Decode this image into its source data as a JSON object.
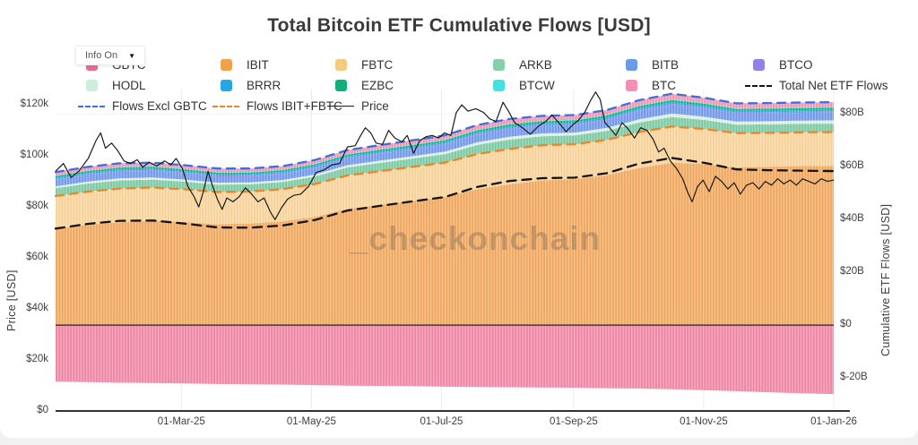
{
  "title": "Total Bitcoin ETF Cumulative Flows [USD]",
  "info_button": {
    "label": "Info On",
    "caret": "▼"
  },
  "watermark": "_checkonchain",
  "legend": {
    "rows": [
      [
        {
          "label": "GBTC",
          "marker": "swatch",
          "color": "#ec6d8f"
        },
        {
          "label": "IBIT",
          "marker": "swatch",
          "color": "#f0a149"
        },
        {
          "label": "FBTC",
          "marker": "swatch",
          "color": "#f6c981"
        },
        {
          "label": "ARKB",
          "marker": "swatch",
          "color": "#85d0ab"
        },
        {
          "label": "BITB",
          "marker": "swatch",
          "color": "#6d9ae8"
        },
        {
          "label": "BTCO",
          "marker": "swatch",
          "color": "#8f82e6"
        }
      ],
      [
        {
          "label": "HODL",
          "marker": "swatch",
          "color": "#cdeeda"
        },
        {
          "label": "BRRR",
          "marker": "swatch",
          "color": "#25a7e3"
        },
        {
          "label": "EZBC",
          "marker": "swatch",
          "color": "#12ad7d"
        },
        {
          "label": "BTCW",
          "marker": "swatch",
          "color": "#42e2e2"
        },
        {
          "label": "BTC",
          "marker": "swatch",
          "color": "#f48fb1"
        },
        {
          "label": "Total Net ETF Flows",
          "marker": "dash",
          "color": "#141414"
        }
      ],
      [
        {
          "label": "Flows Excl GBTC",
          "marker": "dash",
          "color": "#3e6fe0"
        },
        {
          "label": "Flows IBIT+FBTC",
          "marker": "dash",
          "color": "#f08428"
        },
        {
          "label": "Price",
          "marker": "line",
          "color": "#1c1c1c"
        }
      ]
    ]
  },
  "axes": {
    "left": {
      "label": "Price [USD]",
      "range": [
        0,
        126000
      ],
      "ticks": [
        {
          "v": 0,
          "label": "$0"
        },
        {
          "v": 20000,
          "label": "$20k"
        },
        {
          "v": 40000,
          "label": "$40k"
        },
        {
          "v": 60000,
          "label": "$60k"
        },
        {
          "v": 80000,
          "label": "$80k"
        },
        {
          "v": 100000,
          "label": "$100k"
        },
        {
          "v": 120000,
          "label": "$120k"
        }
      ]
    },
    "right": {
      "label": "Cumulative ETF Flows [USD]",
      "range": [
        -32.5,
        89.2
      ],
      "ticks": [
        {
          "v": -20,
          "label": "$-20B"
        },
        {
          "v": 0,
          "label": "$0"
        },
        {
          "v": 20,
          "label": "$20B"
        },
        {
          "v": 40,
          "label": "$40B"
        },
        {
          "v": 60,
          "label": "$60B"
        },
        {
          "v": 80,
          "label": "$80B"
        }
      ]
    },
    "x": {
      "ticks": [
        {
          "t": 0.1616,
          "label": "01-Mar-25"
        },
        {
          "t": 0.3288,
          "label": "01-May-25"
        },
        {
          "t": 0.4959,
          "label": "01-Jul-25"
        },
        {
          "t": 0.6658,
          "label": "01-Sep-25"
        },
        {
          "t": 0.8329,
          "label": "01-Nov-25"
        },
        {
          "t": 1.0,
          "label": "01-Jan-26"
        }
      ]
    }
  },
  "chart_data": {
    "type": "area",
    "stacked": true,
    "legend_position": "top",
    "x_domain": [
      "01-Jan-25",
      "01-Jan-26"
    ],
    "flows_unit": "USD billions",
    "price_unit": "USD thousands",
    "sample_t": [
      0,
      0.042,
      0.083,
      0.125,
      0.167,
      0.208,
      0.25,
      0.292,
      0.333,
      0.375,
      0.417,
      0.458,
      0.5,
      0.542,
      0.583,
      0.625,
      0.667,
      0.708,
      0.75,
      0.792,
      0.833,
      0.875,
      0.917,
      0.958,
      1
    ],
    "series": [
      {
        "id": "GBTC",
        "name": "GBTC",
        "color": "#ee85a3",
        "values": [
          -21.4,
          -21.6,
          -21.8,
          -21.9,
          -22.1,
          -22.3,
          -22.4,
          -22.5,
          -22.7,
          -22.9,
          -23.0,
          -23.1,
          -23.3,
          -23.4,
          -23.5,
          -23.6,
          -23.7,
          -23.9,
          -24.0,
          -24.3,
          -24.6,
          -25.0,
          -25.4,
          -25.8,
          -26.1
        ]
      },
      {
        "id": "IBIT",
        "name": "IBIT",
        "color": "#f0a65c",
        "values": [
          36.5,
          38.0,
          39.0,
          39.5,
          39.0,
          38.2,
          38.5,
          39.3,
          41.0,
          44.0,
          45.5,
          47.0,
          48.5,
          51.5,
          53.3,
          54.8,
          55.3,
          56.8,
          59.5,
          61.5,
          61.0,
          59.8,
          60.0,
          60.2,
          60.2
        ]
      },
      {
        "id": "FBTC",
        "name": "FBTC",
        "color": "#f7d197",
        "values": [
          12.4,
          12.6,
          12.7,
          12.6,
          12.4,
          12.2,
          12.1,
          12.2,
          12.4,
          12.7,
          12.8,
          12.9,
          13.0,
          13.3,
          13.4,
          13.3,
          13.2,
          13.3,
          13.6,
          13.7,
          13.3,
          12.9,
          12.8,
          12.8,
          12.9
        ]
      },
      {
        "id": "ARKB",
        "name": "ARKB",
        "color": "#7bc9a2",
        "values": [
          2.9,
          3.0,
          3.1,
          3.0,
          2.9,
          2.8,
          2.7,
          2.7,
          2.8,
          3.0,
          3.1,
          3.1,
          3.2,
          3.4,
          3.5,
          3.4,
          3.3,
          3.4,
          3.6,
          3.6,
          3.4,
          3.2,
          3.2,
          3.2,
          3.2
        ]
      },
      {
        "id": "HODL",
        "name": "HODL",
        "color": "#d6efdf",
        "values": [
          0.75,
          0.78,
          0.8,
          0.8,
          0.78,
          0.76,
          0.75,
          0.76,
          0.8,
          0.86,
          0.9,
          0.93,
          0.97,
          1.05,
          1.1,
          1.1,
          1.1,
          1.15,
          1.25,
          1.3,
          1.25,
          1.2,
          1.2,
          1.22,
          1.25
        ]
      },
      {
        "id": "BITB",
        "name": "BITB",
        "color": "#7097e8",
        "values": [
          2.4,
          2.5,
          2.55,
          2.5,
          2.4,
          2.35,
          2.3,
          2.3,
          2.4,
          2.5,
          2.55,
          2.6,
          2.65,
          2.8,
          2.9,
          2.85,
          2.85,
          2.9,
          3.1,
          3.2,
          3.05,
          2.95,
          2.95,
          2.95,
          2.95
        ]
      },
      {
        "id": "BTCO",
        "name": "BTCO",
        "color": "#8f82e6",
        "values": [
          0.35,
          0.36,
          0.37,
          0.36,
          0.35,
          0.34,
          0.34,
          0.34,
          0.35,
          0.37,
          0.38,
          0.39,
          0.4,
          0.43,
          0.45,
          0.44,
          0.44,
          0.45,
          0.48,
          0.5,
          0.47,
          0.45,
          0.45,
          0.45,
          0.45
        ]
      },
      {
        "id": "BRRR",
        "name": "BRRR",
        "color": "#25a7e3",
        "values": [
          0.5,
          0.51,
          0.52,
          0.51,
          0.5,
          0.49,
          0.49,
          0.49,
          0.5,
          0.52,
          0.53,
          0.54,
          0.55,
          0.58,
          0.6,
          0.59,
          0.59,
          0.6,
          0.63,
          0.65,
          0.62,
          0.6,
          0.6,
          0.6,
          0.6
        ]
      },
      {
        "id": "EZBC",
        "name": "EZBC",
        "color": "#12ad7d",
        "values": [
          0.62,
          0.63,
          0.64,
          0.63,
          0.62,
          0.61,
          0.6,
          0.6,
          0.62,
          0.65,
          0.66,
          0.67,
          0.68,
          0.72,
          0.74,
          0.73,
          0.73,
          0.74,
          0.78,
          0.8,
          0.77,
          0.74,
          0.74,
          0.74,
          0.74
        ]
      },
      {
        "id": "BTCW",
        "name": "BTCW",
        "color": "#42e2e2",
        "values": [
          0.22,
          0.23,
          0.23,
          0.23,
          0.22,
          0.22,
          0.22,
          0.22,
          0.23,
          0.24,
          0.24,
          0.25,
          0.25,
          0.27,
          0.28,
          0.27,
          0.27,
          0.28,
          0.29,
          0.3,
          0.29,
          0.28,
          0.28,
          0.28,
          0.28
        ]
      },
      {
        "id": "BTC",
        "name": "BTC",
        "color": "#f493b0",
        "values": [
          1.3,
          1.35,
          1.4,
          1.38,
          1.35,
          1.32,
          1.3,
          1.32,
          1.38,
          1.45,
          1.5,
          1.55,
          1.6,
          1.7,
          1.78,
          1.75,
          1.75,
          1.8,
          1.95,
          2.05,
          1.95,
          1.85,
          1.85,
          1.85,
          1.85
        ]
      }
    ],
    "lines": [
      {
        "id": "total_net",
        "name": "Total Net ETF Flows",
        "color": "#141414",
        "style": "dashed",
        "derive": "sum_all"
      },
      {
        "id": "excl_gbtc",
        "name": "Flows Excl GBTC",
        "color": "#3e6fe0",
        "style": "dashed",
        "derive": "sum_positive"
      },
      {
        "id": "ibit_fbtc",
        "name": "Flows IBIT+FBTC",
        "color": "#f08428",
        "style": "dashed",
        "derive": "sum_ids:IBIT,FBTC"
      }
    ],
    "price_line": {
      "name": "Price",
      "color": "#1c1c1c",
      "points": [
        [
          0,
          94
        ],
        [
          0.01,
          97
        ],
        [
          0.02,
          91.5
        ],
        [
          0.03,
          94
        ],
        [
          0.042,
          99
        ],
        [
          0.052,
          106
        ],
        [
          0.058,
          109
        ],
        [
          0.064,
          103
        ],
        [
          0.072,
          105
        ],
        [
          0.08,
          102
        ],
        [
          0.088,
          98
        ],
        [
          0.096,
          97
        ],
        [
          0.105,
          98.5
        ],
        [
          0.112,
          95.5
        ],
        [
          0.12,
          97.5
        ],
        [
          0.13,
          96
        ],
        [
          0.14,
          98
        ],
        [
          0.148,
          96.5
        ],
        [
          0.155,
          99
        ],
        [
          0.163,
          95
        ],
        [
          0.17,
          88
        ],
        [
          0.178,
          84
        ],
        [
          0.184,
          80
        ],
        [
          0.19,
          86
        ],
        [
          0.196,
          94
        ],
        [
          0.202,
          88
        ],
        [
          0.208,
          83
        ],
        [
          0.214,
          79
        ],
        [
          0.22,
          83.5
        ],
        [
          0.228,
          82
        ],
        [
          0.236,
          84
        ],
        [
          0.244,
          87.5
        ],
        [
          0.252,
          85
        ],
        [
          0.26,
          82
        ],
        [
          0.268,
          83.5
        ],
        [
          0.276,
          78
        ],
        [
          0.282,
          75
        ],
        [
          0.29,
          79.5
        ],
        [
          0.298,
          83
        ],
        [
          0.306,
          84.5
        ],
        [
          0.315,
          85
        ],
        [
          0.325,
          88
        ],
        [
          0.335,
          93.5
        ],
        [
          0.345,
          94.5
        ],
        [
          0.355,
          96.5
        ],
        [
          0.365,
          97
        ],
        [
          0.375,
          103.5
        ],
        [
          0.385,
          104
        ],
        [
          0.392,
          108
        ],
        [
          0.398,
          111
        ],
        [
          0.405,
          109
        ],
        [
          0.412,
          105
        ],
        [
          0.42,
          104.5
        ],
        [
          0.428,
          110
        ],
        [
          0.436,
          107
        ],
        [
          0.445,
          105.5
        ],
        [
          0.452,
          108
        ],
        [
          0.46,
          101
        ],
        [
          0.468,
          106
        ],
        [
          0.476,
          107.5
        ],
        [
          0.484,
          108
        ],
        [
          0.492,
          107
        ],
        [
          0.5,
          109
        ],
        [
          0.508,
          108
        ],
        [
          0.515,
          117
        ],
        [
          0.522,
          120
        ],
        [
          0.53,
          117.5
        ],
        [
          0.54,
          118.5
        ],
        [
          0.55,
          117
        ],
        [
          0.558,
          114.5
        ],
        [
          0.566,
          113.5
        ],
        [
          0.575,
          121
        ],
        [
          0.582,
          117.5
        ],
        [
          0.59,
          113
        ],
        [
          0.6,
          111
        ],
        [
          0.61,
          108.5
        ],
        [
          0.62,
          111.5
        ],
        [
          0.63,
          113.5
        ],
        [
          0.638,
          116
        ],
        [
          0.648,
          112.5
        ],
        [
          0.656,
          109.5
        ],
        [
          0.664,
          112
        ],
        [
          0.672,
          114
        ],
        [
          0.68,
          117
        ],
        [
          0.688,
          122
        ],
        [
          0.694,
          125
        ],
        [
          0.7,
          122
        ],
        [
          0.706,
          113
        ],
        [
          0.712,
          111
        ],
        [
          0.72,
          108
        ],
        [
          0.728,
          113
        ],
        [
          0.736,
          110.5
        ],
        [
          0.744,
          107
        ],
        [
          0.752,
          111
        ],
        [
          0.76,
          110
        ],
        [
          0.768,
          106.5
        ],
        [
          0.775,
          101.5
        ],
        [
          0.782,
          103
        ],
        [
          0.79,
          98
        ],
        [
          0.798,
          95
        ],
        [
          0.806,
          91
        ],
        [
          0.812,
          86
        ],
        [
          0.818,
          82
        ],
        [
          0.825,
          88
        ],
        [
          0.832,
          90.5
        ],
        [
          0.84,
          86
        ],
        [
          0.848,
          92
        ],
        [
          0.856,
          90
        ],
        [
          0.864,
          87
        ],
        [
          0.872,
          89.5
        ],
        [
          0.88,
          85
        ],
        [
          0.888,
          88.5
        ],
        [
          0.896,
          89.5
        ],
        [
          0.904,
          87
        ],
        [
          0.912,
          90
        ],
        [
          0.92,
          88.5
        ],
        [
          0.928,
          91
        ],
        [
          0.936,
          89
        ],
        [
          0.944,
          90.5
        ],
        [
          0.952,
          88.5
        ],
        [
          0.96,
          91
        ],
        [
          0.968,
          90
        ],
        [
          0.976,
          89
        ],
        [
          0.984,
          91
        ],
        [
          0.992,
          90
        ],
        [
          1,
          90.5
        ]
      ]
    }
  }
}
